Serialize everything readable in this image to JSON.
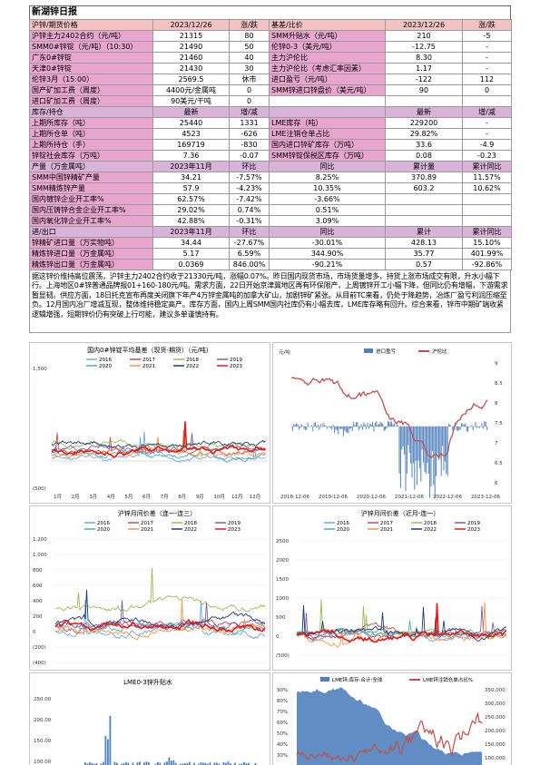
{
  "title": "新湖锌日报",
  "t1": {
    "header": [
      "沪锌/期货价格",
      "2023/12/26",
      "涨/跌",
      "基差/比价",
      "2023/12/26",
      "涨/跌"
    ],
    "rows": [
      [
        "沪锌主力2402合约（元/吨）",
        "21315",
        "80",
        "SMM升贴水（元/吨）",
        "210",
        "-5"
      ],
      [
        "SMM0#锌锭（元/吨）（10:30）",
        "21490",
        "50",
        "伦锌0-3（美元/吨）",
        "-12.75",
        "-"
      ],
      [
        "广东0#锌锭",
        "21460",
        "40",
        "主力沪伦比",
        "8.30",
        "-"
      ],
      [
        "天津0#锌锭",
        "21430",
        "30",
        "主力沪伦比（考虑汇率因素）",
        "1.17",
        "-"
      ],
      [
        "伦锌3月（15:00）",
        "2569.5",
        "休市",
        "进口盈亏（元/吨）",
        "-122",
        "112"
      ],
      [
        "国产矿加工费（周度）",
        "4400元/金属吨",
        "0",
        "SMM锌进口锌盘价（美元/吨）",
        "90",
        "0"
      ],
      [
        "进口矿加工费（周度）",
        "90美元/干吨",
        "0",
        "",
        "",
        ""
      ]
    ]
  },
  "t2": {
    "header": [
      "库存/持仓",
      "最新",
      "增/减",
      "",
      "最新",
      "增/减"
    ],
    "rows": [
      [
        "上期所库存（吨）",
        "25440",
        "1331",
        "LME库存（吨）",
        "229200",
        "-"
      ],
      [
        "上期所仓单（吨）",
        "4523",
        "-626",
        "LME注销仓单占比",
        "29.82%",
        "-"
      ],
      [
        "上期所持仓（手）",
        "169719",
        "-830",
        "国内进口锌矿库存（万吨）",
        "33.6",
        "-4.9"
      ],
      [
        "锌锭社会库存（万吨）",
        "7.36",
        "-0.07",
        "SMM锌锭保税区库存（万吨）",
        "0.08",
        "-0.23"
      ]
    ]
  },
  "t3": {
    "header": [
      "产量（万金属吨）",
      "2023年11月",
      "环比",
      "同比",
      "累计量",
      "累计同比"
    ],
    "rows": [
      [
        "SMM中国锌精矿产量",
        "34.21",
        "-7.57%",
        "8.25%",
        "370.89",
        "11.57%"
      ],
      [
        "SMM精炼锌产量",
        "57.9",
        "-4.23%",
        "10.35%",
        "603.2",
        "10.62%"
      ],
      [
        "国内镀锌企业开工率%",
        "62.57%",
        "-7.42%",
        "-3.66%",
        "",
        ""
      ],
      [
        "国内压铸锌合金企业开工率%",
        "29.02%",
        "0.74%",
        "0.51%",
        "",
        ""
      ],
      [
        "国内氧化锌企业开工率%",
        "42.88%",
        "-0.31%",
        "3.09%",
        "",
        ""
      ]
    ]
  },
  "t4": {
    "header": [
      "进/出口",
      "2023年11月",
      "环比",
      "同比",
      "累计",
      "累计同比"
    ],
    "rows": [
      [
        "锌精矿进口量（万实物吨）",
        "34.44",
        "-27.67%",
        "-30.01%",
        "428.13",
        "15.10%"
      ],
      [
        "精炼锌进口量（万金属吨）",
        "5.17",
        "6.59%",
        "344.90%",
        "35.77",
        "401.99%"
      ],
      [
        "精炼锌出口量（万金属吨）",
        "0.0369",
        "846.00%",
        "-90.21%",
        "0.57",
        "-92.86%"
      ]
    ]
  },
  "paragraph": "据这锌价维持高位震荡，沪锌主力2402合约收于21330元/吨，涨幅0.07%。昨日国内现货市场，市场货量增多，持货上涨市场成交有限，升水小幅下行。上海地区0#锌普通品牌报01+160-180元/吨。需求方面，22日开始京津冀地区再有环保限产，上周镀锌开工小幅下降，但同比仍有增幅，下游需求暂显韧。供应方面，18日托克宣布再度关闭旗下年产4万锌金属吨的加拿大矿山，加剧锌矿紧张。从目前TC来看，仍处于降趋势，冶炼厂盈亏利润压缩至负。12月国内冶厂增减互现，整体维持稳定高产。库存方面，国内上周SMM国内社库仍有小幅去库，LME库存略有回升。综合来看，锌市中期矿端收紧逻辑增强，短期锌价仍有突破上行可能，建议多单谨慎持有。",
  "charts": {
    "c1": {
      "title": "国内0#锌锭平均基差（现货-期货）（元/吨）",
      "legend": [
        "2016",
        "2017",
        "2018",
        "2019",
        "2020",
        "2021",
        "2022",
        "2023"
      ],
      "y_top": "1,500",
      "y_bottom": "(500)",
      "months": [
        "1月",
        "2月",
        "3月",
        "4月",
        "5月",
        "6月",
        "7月",
        "8月",
        "9月",
        "10月",
        "11月",
        "12月"
      ]
    },
    "c2": {
      "unit": "元/吨",
      "legend": [
        "进口盈亏",
        "沪伦比"
      ],
      "right_ticks": [
        "9",
        "8.5",
        "8",
        "7.5",
        "7",
        "6.5",
        "6"
      ],
      "x_labels": [
        "2018-12-06",
        "2019-12-06",
        "2020-12-06",
        "2021-12-06",
        "2022-12-06",
        "2023-12-06"
      ]
    },
    "c3": {
      "title": "沪锌月间价差（连一-连三）",
      "legend": [
        "2016",
        "2017",
        "2018",
        "2019",
        "2020",
        "2021",
        "2022",
        "2023"
      ],
      "y_ticks": [
        "1,200",
        "1,000",
        "800",
        "600",
        "400",
        "200",
        "0",
        "(200)",
        "(400)"
      ]
    },
    "c4": {
      "title": "沪锌月间价差（近月-连一）",
      "legend": [
        "2016",
        "2017",
        "2018",
        "2019",
        "2020",
        "2021",
        "2022",
        "2023"
      ],
      "y_ticks": [
        "2500",
        "2000",
        "1500",
        "1000",
        "500",
        "0",
        "(500)"
      ]
    },
    "c5": {
      "title": "LME0-3锌升贴水",
      "y_ticks": [
        "250.00",
        "200.00",
        "150.00",
        "100.00"
      ]
    },
    "c6": {
      "legend": [
        "LME锌:库存:合计:全球",
        "LME锌注销仓单占比%"
      ],
      "left_ticks": [
        "90%",
        "80%",
        "70%",
        "60%",
        "50%",
        "40%",
        "30%"
      ],
      "right_ticks": [
        "350,000",
        "300,000",
        "250,000",
        "200,000",
        "150,000",
        "100,000"
      ]
    }
  },
  "colors": {
    "y2016": "#6fa8dc",
    "y2017": "#c0504d",
    "y2018": "#9bbb59",
    "y2019": "#7f5fa8",
    "y2020": "#4bacc6",
    "y2021": "#f79646",
    "y2022": "#1f3b73",
    "y2023": "#e31a1c",
    "title_bar": "#d9b3d9",
    "header_pink": "#f4c2c2"
  }
}
